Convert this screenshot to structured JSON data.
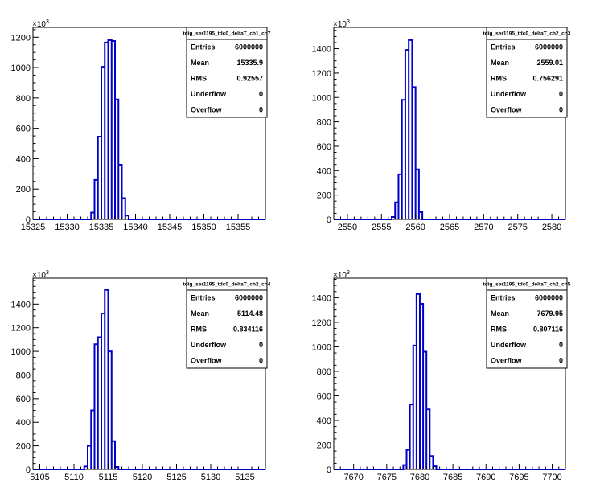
{
  "chart_data": [
    {
      "type": "histogram",
      "stats_title": "tdig_ser1195_tdc0_deltaT_ch1_ch7",
      "stats": [
        {
          "label": "Entries",
          "value": "6000000"
        },
        {
          "label": "Mean",
          "value": "15335.9"
        },
        {
          "label": "RMS",
          "value": "0.92557"
        },
        {
          "label": "Underflow",
          "value": "0"
        },
        {
          "label": "Overflow",
          "value": "0"
        }
      ],
      "y_multiplier": "×10",
      "y_multiplier_exp": "3",
      "xlim": [
        15325,
        15359
      ],
      "ylim": [
        0,
        1265
      ],
      "x_ticks": [
        15325,
        15330,
        15335,
        15340,
        15345,
        15350,
        15355
      ],
      "y_ticks": [
        0,
        200,
        400,
        600,
        800,
        1000,
        1200
      ],
      "bins": [
        {
          "x0": 15333.5,
          "x1": 15334.0,
          "value": 45
        },
        {
          "x0": 15334.0,
          "x1": 15334.5,
          "value": 260
        },
        {
          "x0": 15334.5,
          "x1": 15335.0,
          "value": 545
        },
        {
          "x0": 15335.0,
          "x1": 15335.5,
          "value": 1005
        },
        {
          "x0": 15335.5,
          "x1": 15336.0,
          "value": 1165
        },
        {
          "x0": 15336.0,
          "x1": 15336.5,
          "value": 1180
        },
        {
          "x0": 15336.5,
          "x1": 15337.0,
          "value": 1175
        },
        {
          "x0": 15337.0,
          "x1": 15337.5,
          "value": 790
        },
        {
          "x0": 15337.5,
          "x1": 15338.0,
          "value": 360
        },
        {
          "x0": 15338.0,
          "x1": 15338.5,
          "value": 140
        },
        {
          "x0": 15338.5,
          "x1": 15339.0,
          "value": 25
        }
      ]
    },
    {
      "type": "histogram",
      "stats_title": "tdig_ser1195_tdc0_deltaT_ch2_ch3",
      "stats": [
        {
          "label": "Entries",
          "value": "6000000"
        },
        {
          "label": "Mean",
          "value": "2559.01"
        },
        {
          "label": "RMS",
          "value": "0.756291"
        },
        {
          "label": "Underflow",
          "value": "0"
        },
        {
          "label": "Overflow",
          "value": "0"
        }
      ],
      "y_multiplier": "×10",
      "y_multiplier_exp": "3",
      "xlim": [
        2548,
        2582
      ],
      "ylim": [
        0,
        1575
      ],
      "x_ticks": [
        2550,
        2555,
        2560,
        2565,
        2570,
        2575,
        2580
      ],
      "y_ticks": [
        0,
        200,
        400,
        600,
        800,
        1000,
        1200,
        1400
      ],
      "bins": [
        {
          "x0": 2556.5,
          "x1": 2557.0,
          "value": 20
        },
        {
          "x0": 2557.0,
          "x1": 2557.5,
          "value": 140
        },
        {
          "x0": 2557.5,
          "x1": 2558.0,
          "value": 370
        },
        {
          "x0": 2558.0,
          "x1": 2558.5,
          "value": 980
        },
        {
          "x0": 2558.5,
          "x1": 2559.0,
          "value": 1390
        },
        {
          "x0": 2559.0,
          "x1": 2559.5,
          "value": 1470
        },
        {
          "x0": 2559.5,
          "x1": 2560.0,
          "value": 1085
        },
        {
          "x0": 2560.0,
          "x1": 2560.5,
          "value": 410
        },
        {
          "x0": 2560.5,
          "x1": 2561.0,
          "value": 60
        }
      ]
    },
    {
      "type": "histogram",
      "stats_title": "tdig_ser1195_tdc0_deltaT_ch2_ch4",
      "stats": [
        {
          "label": "Entries",
          "value": "6000000"
        },
        {
          "label": "Mean",
          "value": "5114.48"
        },
        {
          "label": "RMS",
          "value": "0.834116"
        },
        {
          "label": "Underflow",
          "value": "0"
        },
        {
          "label": "Overflow",
          "value": "0"
        }
      ],
      "y_multiplier": "×10",
      "y_multiplier_exp": "3",
      "xlim": [
        5104,
        5138
      ],
      "ylim": [
        0,
        1620
      ],
      "x_ticks": [
        5105,
        5110,
        5115,
        5120,
        5125,
        5130,
        5135
      ],
      "y_ticks": [
        0,
        200,
        400,
        600,
        800,
        1000,
        1200,
        1400
      ],
      "bins": [
        {
          "x0": 5111.5,
          "x1": 5112.0,
          "value": 25
        },
        {
          "x0": 5112.0,
          "x1": 5112.5,
          "value": 200
        },
        {
          "x0": 5112.5,
          "x1": 5113.0,
          "value": 500
        },
        {
          "x0": 5113.0,
          "x1": 5113.5,
          "value": 1060
        },
        {
          "x0": 5113.5,
          "x1": 5114.0,
          "value": 1120
        },
        {
          "x0": 5114.0,
          "x1": 5114.5,
          "value": 1320
        },
        {
          "x0": 5114.5,
          "x1": 5115.0,
          "value": 1520
        },
        {
          "x0": 5115.0,
          "x1": 5115.5,
          "value": 1000
        },
        {
          "x0": 5115.5,
          "x1": 5116.0,
          "value": 240
        },
        {
          "x0": 5116.0,
          "x1": 5116.5,
          "value": 20
        }
      ]
    },
    {
      "type": "histogram",
      "stats_title": "tdig_ser1195_tdc0_deltaT_ch2_ch5",
      "stats": [
        {
          "label": "Entries",
          "value": "6000000"
        },
        {
          "label": "Mean",
          "value": "7679.95"
        },
        {
          "label": "RMS",
          "value": "0.807116"
        },
        {
          "label": "Underflow",
          "value": "0"
        },
        {
          "label": "Overflow",
          "value": "0"
        }
      ],
      "y_multiplier": "×10",
      "y_multiplier_exp": "3",
      "xlim": [
        7667,
        7702
      ],
      "ylim": [
        0,
        1560
      ],
      "x_ticks": [
        7670,
        7675,
        7680,
        7685,
        7690,
        7695,
        7700
      ],
      "y_ticks": [
        0,
        200,
        400,
        600,
        800,
        1000,
        1200,
        1400
      ],
      "bins": [
        {
          "x0": 7677.5,
          "x1": 7678.0,
          "value": 35
        },
        {
          "x0": 7678.0,
          "x1": 7678.5,
          "value": 160
        },
        {
          "x0": 7678.5,
          "x1": 7679.0,
          "value": 530
        },
        {
          "x0": 7679.0,
          "x1": 7679.5,
          "value": 1010
        },
        {
          "x0": 7679.5,
          "x1": 7680.0,
          "value": 1430
        },
        {
          "x0": 7680.0,
          "x1": 7680.5,
          "value": 1350
        },
        {
          "x0": 7680.5,
          "x1": 7681.0,
          "value": 960
        },
        {
          "x0": 7681.0,
          "x1": 7681.5,
          "value": 490
        },
        {
          "x0": 7681.5,
          "x1": 7682.0,
          "value": 110
        },
        {
          "x0": 7682.0,
          "x1": 7682.5,
          "value": 25
        }
      ]
    }
  ],
  "colors": {
    "histogram_line": "#0000cc",
    "frame": "#000000",
    "background": "#ffffff"
  }
}
